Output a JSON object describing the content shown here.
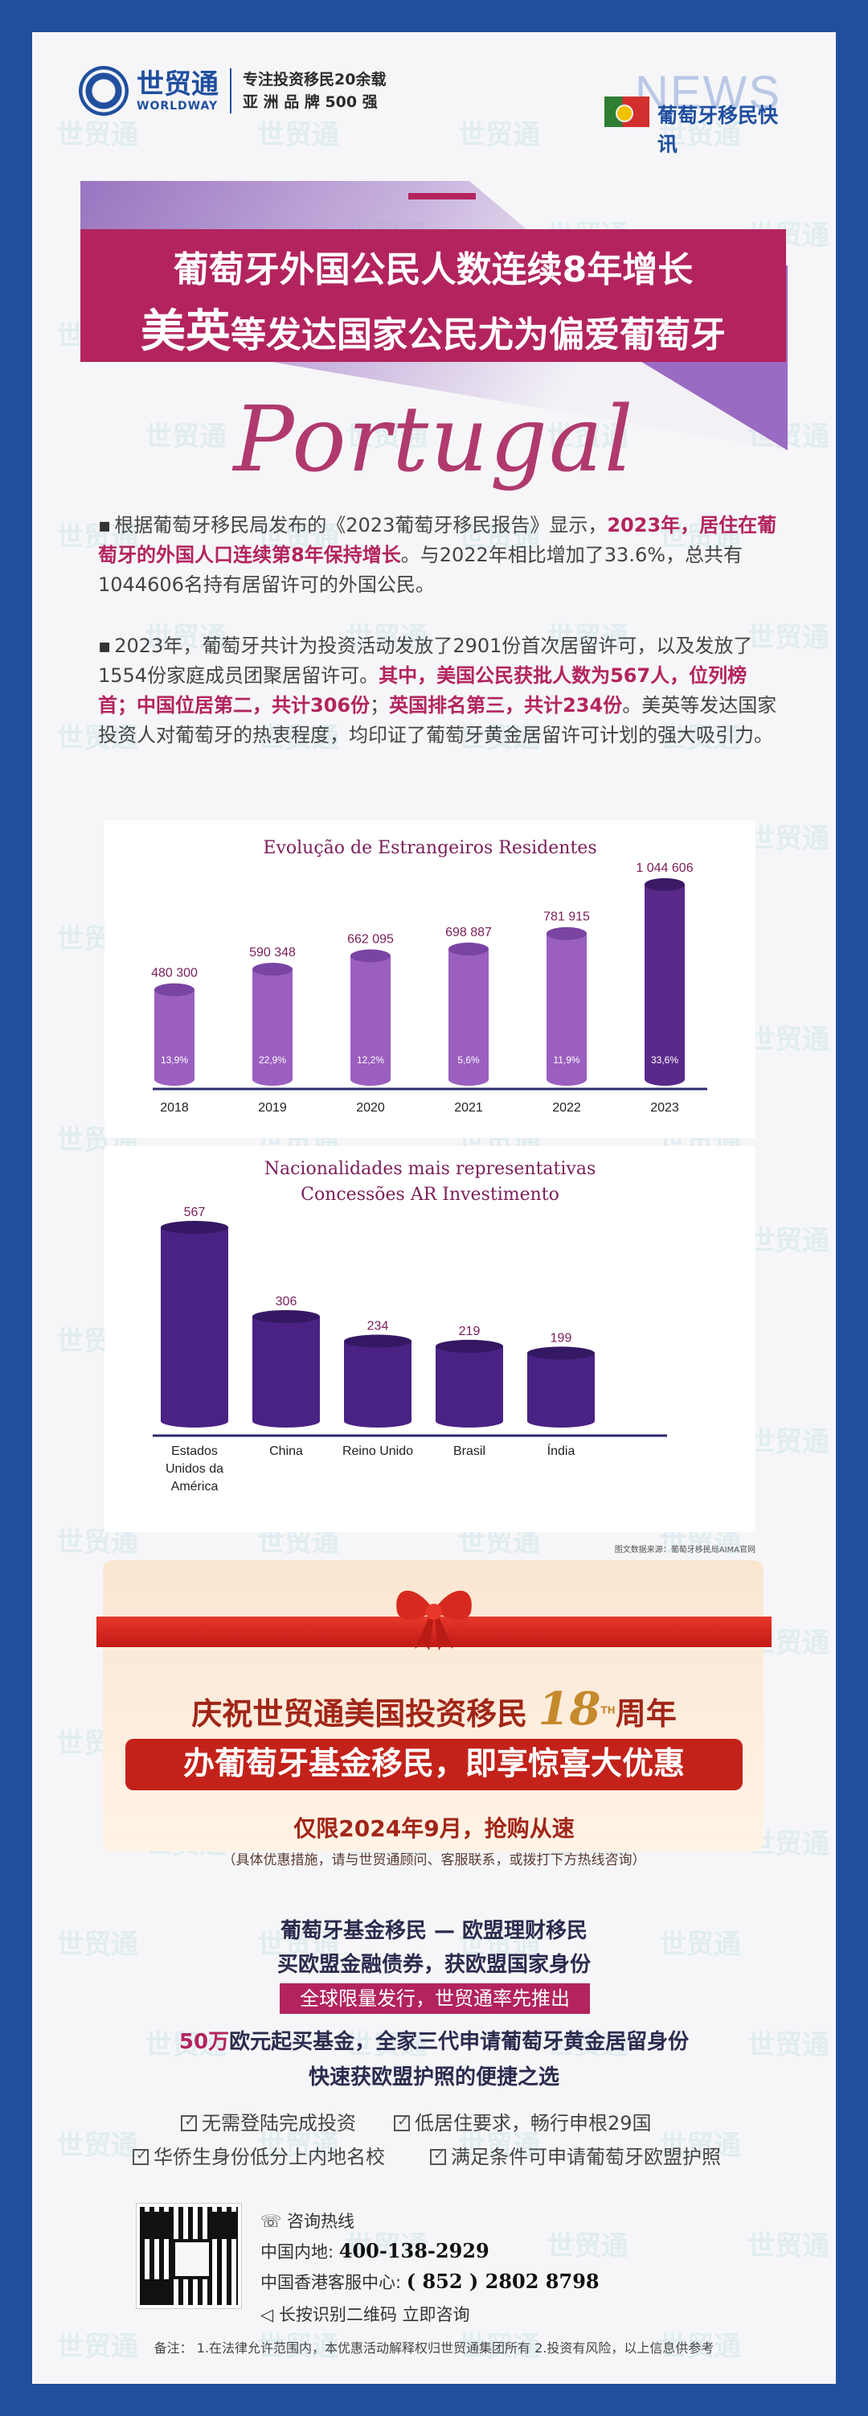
{
  "header": {
    "logo_cn": "世贸通",
    "logo_en": "WORLDWAY",
    "slogan_1": "专注投资移民20余载",
    "slogan_2": "亚 洲 品 牌 500 强",
    "news_big": "NEWS",
    "news_sub": "葡萄牙移民快讯",
    "flag_icon": "portugal-flag-icon"
  },
  "watermark": "世贸通",
  "banner": {
    "title_1": "葡萄牙外国公民人数连续8年增长",
    "title_2_big": "美英",
    "title_2_rest": "等发达国家公民尤为偏爱葡萄牙",
    "script_word": "Portugal"
  },
  "paragraphs": {
    "p1_a": "根据葡萄牙移民局发布的《2023葡萄牙移民报告》显示，",
    "p1_hl": "2023年，居住在葡萄牙的外国人口连续第8年保持增长",
    "p1_b": "。与2022年相比增加了33.6%，总共有1044606名持有居留许可的外国公民。",
    "p2_a": "2023年，葡萄牙共计为投资活动发放了2901份首次居留许可，以及发放了1554份家庭成员团聚居留许可。",
    "p2_hl1": "其中，美国公民获批人数为567人，位列榜首；中国位居第二，共计306份",
    "p2_b": "；",
    "p2_hl2": "英国排名第三，共计234份",
    "p2_c": "。美英等发达国家投资人对葡萄牙的热衷程度，均印证了葡萄牙黄金居留许可计划的强大吸引力。"
  },
  "chart_data": [
    {
      "type": "bar",
      "title": "Evolução de Estrangeiros Residentes",
      "categories": [
        "2018",
        "2019",
        "2020",
        "2021",
        "2022",
        "2023"
      ],
      "values": [
        480300,
        590348,
        662095,
        698887,
        781915,
        1044606
      ],
      "value_labels": [
        "480 300",
        "590 348",
        "662 095",
        "698 887",
        "781 915",
        "1 044 606"
      ],
      "growth_labels": [
        "13,9%",
        "22,9%",
        "12,2%",
        "5,6%",
        "11,9%",
        "33,6%"
      ],
      "colors": [
        "#9b5fc0",
        "#9b5fc0",
        "#9b5fc0",
        "#9b5fc0",
        "#9b5fc0",
        "#5a2a8a"
      ],
      "ylim": [
        0,
        1100000
      ]
    },
    {
      "type": "bar",
      "title": "Nacionalidades mais representativas",
      "subtitle": "Concessões AR Investimento",
      "categories": [
        "Estados Unidos da América",
        "China",
        "Reino Unido",
        "Brasil",
        "Índia"
      ],
      "category_lines": [
        [
          "Estados",
          "Unidos da",
          "América"
        ],
        [
          "China"
        ],
        [
          "Reino Unido"
        ],
        [
          "Brasil"
        ],
        [
          "Índia"
        ]
      ],
      "values": [
        567,
        306,
        234,
        219,
        199
      ],
      "color": "#4a2283",
      "ylim": [
        0,
        600
      ]
    }
  ],
  "source_note": "图文数据来源：葡萄牙移民局AIMA官网",
  "promo": {
    "line_1_a": "庆祝世贸通美国投资移民",
    "line_1_num": "18",
    "line_1_sup": "TH",
    "line_1_b": "周年",
    "box_text": "办葡萄牙基金移民，即享惊喜大优惠",
    "line_3": "仅限2024年9月，抢购从速",
    "line_4": "（具体优惠措施，请与世贸通顾问、客服联系，或拨打下方热线咨询）"
  },
  "product": {
    "title": "葡萄牙基金移民 — 欧盟理财移民",
    "subtitle": "买欧盟金融债券，获欧盟国家身份",
    "tag": "全球限量发行，世贸通率先推出",
    "fund_num": "50万",
    "fund_rest": "欧元起买基金，全家三代申请葡萄牙黄金居留身份",
    "fast": "快速获欧盟护照的便捷之选",
    "features": [
      "无需登陆完成投资",
      "低居住要求，畅行申根29国",
      "华侨生身份低分上内地名校",
      "满足条件可申请葡萄牙欧盟护照"
    ]
  },
  "contact": {
    "hotline_label": "咨询热线",
    "cn_label": "中国内地:",
    "cn_phone": "400-138-2929",
    "hk_label": "中国香港客服中心:",
    "hk_phone": "( 852 ) 2802 8798",
    "scan_hint": "长按识别二维码 立即咨询",
    "qr_icon": "qr-code-icon"
  },
  "footnote": "备注： 1.在法律允许范围内，本优惠活动解释权归世贸通集团所有 2.投资有风险，以上信息供参考"
}
